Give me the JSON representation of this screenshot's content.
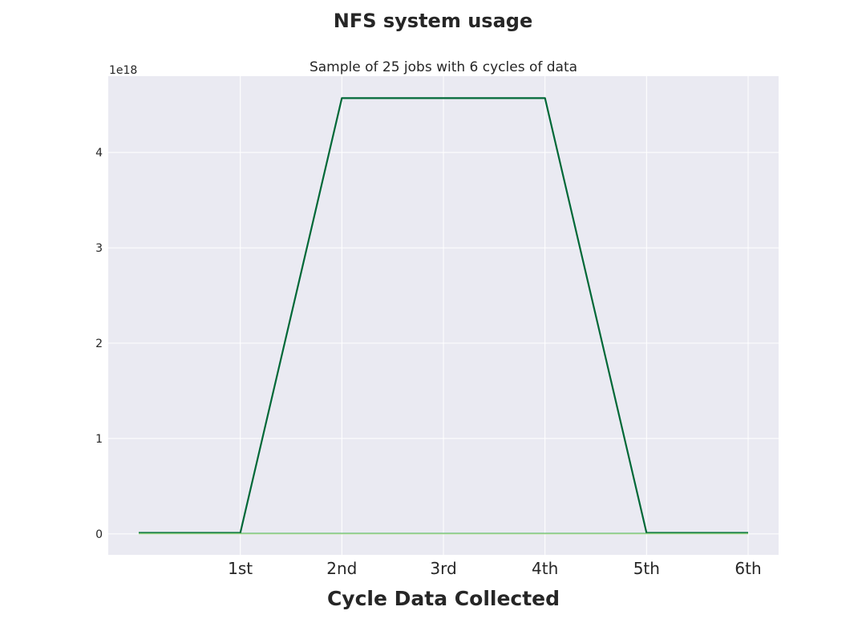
{
  "chart_data": {
    "type": "line",
    "title": "NFS system usage",
    "subtitle": "Sample of 25 jobs with 6 cycles of data",
    "xlabel": "Cycle Data Collected",
    "ylabel": "",
    "y_offset_label": "1e18",
    "x": [
      0,
      1,
      2,
      3,
      4,
      5,
      6
    ],
    "x_tick_positions": [
      1,
      2,
      3,
      4,
      5,
      6
    ],
    "x_tick_labels": [
      "1st",
      "2nd",
      "3rd",
      "4th",
      "5th",
      "6th"
    ],
    "y_tick_values": [
      0,
      1,
      2,
      3,
      4
    ],
    "y_tick_labels": [
      "0",
      "1",
      "2",
      "3",
      "4"
    ],
    "xlim": [
      -0.3,
      6.3
    ],
    "ylim": [
      -0.22,
      4.8
    ],
    "grid": true,
    "series": [
      {
        "values": [
          0.01,
          0.01,
          4.57,
          4.57,
          4.57,
          0.01,
          0.01
        ],
        "color": "#006837",
        "width": 2.2
      },
      {
        "values": [
          0.005,
          0.005,
          0.005,
          0.005,
          0.005,
          0.005,
          0.005
        ],
        "color": "#31a354",
        "width": 1.2
      },
      {
        "values": [
          0.0,
          0.0,
          0.0,
          0.0,
          0.0,
          0.0,
          0.0
        ],
        "color": "#addd8e",
        "width": 1.2
      }
    ]
  },
  "colors": {
    "plot_background": "#eaeaf2",
    "grid": "#ffffff",
    "text": "#262626"
  }
}
